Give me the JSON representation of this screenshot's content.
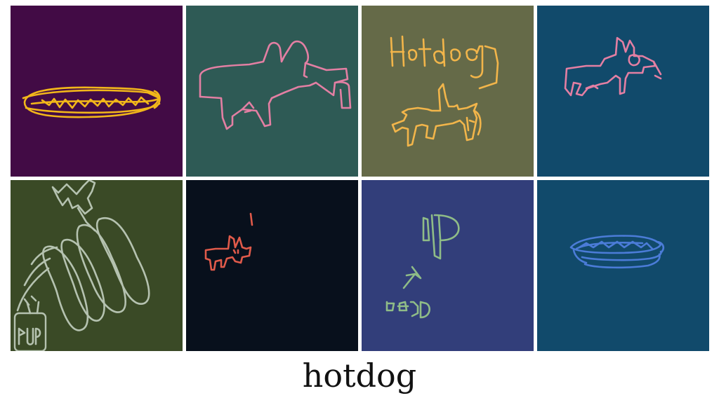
{
  "caption": "hotdog",
  "tiles": [
    {
      "background": "#420b45",
      "stroke": "#f2b71a",
      "icon": "hotdog-scribble"
    },
    {
      "background": "#2e5a55",
      "stroke": "#e37fa3",
      "icon": "dog-sketch"
    },
    {
      "background": "#656a48",
      "stroke": "#f2b54a",
      "icon": "dog-sketch-with-text",
      "text": "Hotdog"
    },
    {
      "background": "#114a6b",
      "stroke": "#e47fa3",
      "icon": "dog-sketch"
    },
    {
      "background": "#3a4a26",
      "stroke": "#b5c2b0",
      "icon": "hotdogs-in-hand",
      "text": "BUP"
    },
    {
      "background": "#08101c",
      "stroke": "#e05a4a",
      "icon": "small-dog-sketch"
    },
    {
      "background": "#323e7a",
      "stroke": "#8fbc87",
      "icon": "abstract-doodle",
      "text": "BAD"
    },
    {
      "background": "#114a6b",
      "stroke": "#4b7cd8",
      "icon": "hotdog-sketch"
    }
  ]
}
